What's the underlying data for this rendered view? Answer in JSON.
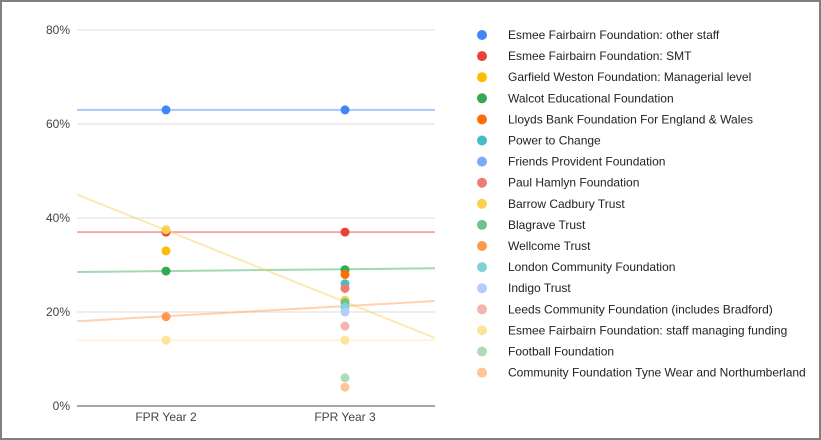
{
  "chart_data": {
    "type": "scatter",
    "title": "",
    "xlabel": "",
    "ylabel": "",
    "categories": [
      "FPR Year 2",
      "FPR Year 3"
    ],
    "ylim": [
      0,
      80
    ],
    "yticks": [
      0,
      20,
      40,
      60,
      80
    ],
    "ytick_labels": [
      "0%",
      "20%",
      "40%",
      "60%",
      "80%"
    ],
    "grid": true,
    "legend_position": "right",
    "series": [
      {
        "name": "Esmee Fairbairn Foundation: other staff",
        "color": "#4285f4",
        "values": [
          63,
          63
        ],
        "trend": [
          63,
          0
        ]
      },
      {
        "name": "Esmee Fairbairn Foundation: SMT",
        "color": "#ea4335",
        "values": [
          37,
          37
        ],
        "trend": [
          37,
          0
        ]
      },
      {
        "name": "Garfield Weston Foundation: Managerial level",
        "color": "#fbbc04",
        "values": [
          33,
          null
        ]
      },
      {
        "name": "Walcot Educational Foundation",
        "color": "#34a853",
        "values": [
          28.7,
          29
        ],
        "trend": [
          28.7,
          0.4
        ]
      },
      {
        "name": "Lloyds Bank Foundation For England & Wales",
        "color": "#ff6d01",
        "values": [
          null,
          28
        ]
      },
      {
        "name": "Power to Change",
        "color": "#46bdc6",
        "values": [
          null,
          26
        ]
      },
      {
        "name": "Friends Provident Foundation",
        "color": "#7baaf7",
        "values": [
          null,
          null
        ]
      },
      {
        "name": "Paul Hamlyn Foundation",
        "color": "#f07b72",
        "values": [
          null,
          25
        ]
      },
      {
        "name": "Barrow Cadbury Trust",
        "color": "#fcd04f",
        "values": [
          37.5,
          22.5
        ],
        "trend": [
          37.4,
          -15.25
        ]
      },
      {
        "name": "Blagrave Trust",
        "color": "#71c287",
        "values": [
          null,
          22
        ]
      },
      {
        "name": "Wellcome Trust",
        "color": "#ff994d",
        "values": [
          19,
          null
        ],
        "trend": [
          19.1,
          2.15
        ]
      },
      {
        "name": "London Community Foundation",
        "color": "#7ed1d7",
        "values": [
          null,
          21
        ]
      },
      {
        "name": "Indigo Trust",
        "color": "#b3cefb",
        "values": [
          null,
          20
        ]
      },
      {
        "name": "Leeds Community Foundation (includes Bradford)",
        "color": "#f7b4ae",
        "values": [
          null,
          17
        ]
      },
      {
        "name": "Esmee Fairbairn Foundation: staff managing funding",
        "color": "#fde49b",
        "values": [
          14,
          14
        ],
        "trend": [
          14,
          0
        ]
      },
      {
        "name": "Football Foundation",
        "color": "#aedcba",
        "values": [
          null,
          6
        ]
      },
      {
        "name": "Community Foundation Tyne Wear and Northumberland",
        "color": "#ffc599",
        "values": [
          null,
          4
        ]
      }
    ]
  }
}
